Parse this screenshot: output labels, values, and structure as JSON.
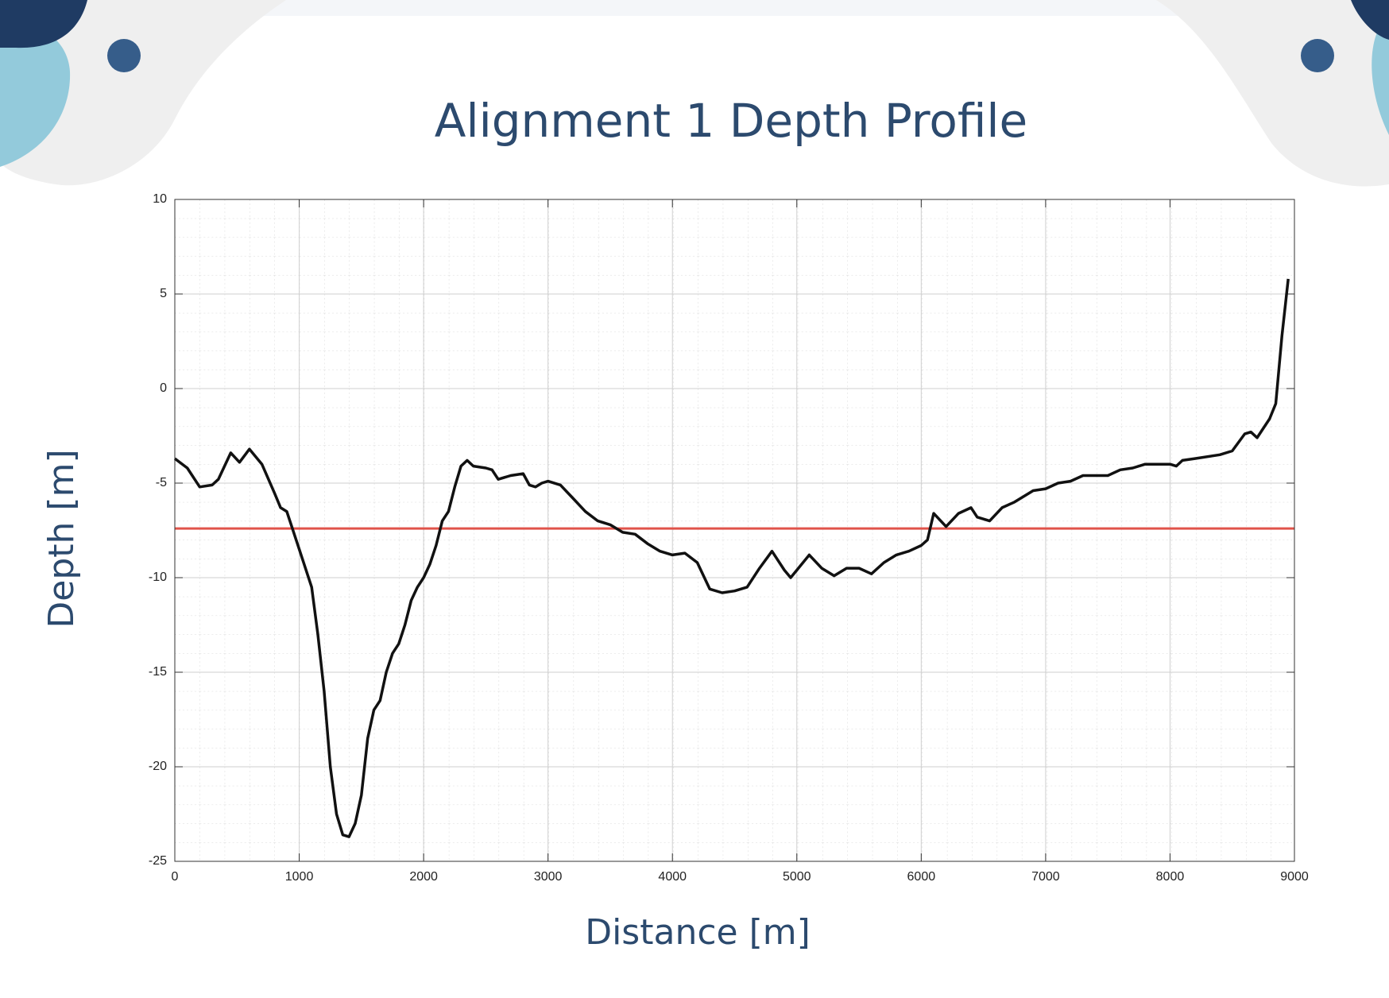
{
  "chart_data": {
    "type": "line",
    "title": "Alignment 1 Depth Profile",
    "x_label": "Distance [m]",
    "y_label": "Depth [m]",
    "x": [
      0,
      100,
      200,
      300,
      350,
      450,
      520,
      600,
      700,
      800,
      850,
      900,
      1000,
      1100,
      1150,
      1200,
      1250,
      1300,
      1350,
      1400,
      1450,
      1500,
      1550,
      1600,
      1650,
      1700,
      1750,
      1800,
      1850,
      1900,
      1950,
      2000,
      2050,
      2100,
      2150,
      2200,
      2250,
      2300,
      2350,
      2400,
      2500,
      2550,
      2600,
      2700,
      2800,
      2850,
      2900,
      2950,
      3000,
      3100,
      3200,
      3300,
      3400,
      3500,
      3600,
      3700,
      3800,
      3900,
      4000,
      4100,
      4200,
      4300,
      4400,
      4500,
      4600,
      4700,
      4800,
      4900,
      4950,
      5000,
      5100,
      5200,
      5300,
      5400,
      5500,
      5600,
      5700,
      5800,
      5900,
      6000,
      6050,
      6100,
      6200,
      6300,
      6400,
      6450,
      6550,
      6650,
      6750,
      6900,
      7000,
      7100,
      7200,
      7300,
      7500,
      7600,
      7700,
      7800,
      8000,
      8050,
      8100,
      8200,
      8400,
      8500,
      8600,
      8650,
      8700,
      8800,
      8850,
      8900,
      8950
    ],
    "values": [
      -3.7,
      -4.2,
      -5.2,
      -5.1,
      -4.8,
      -3.4,
      -3.9,
      -3.2,
      -4.0,
      -5.5,
      -6.3,
      -6.5,
      -8.5,
      -10.5,
      -13,
      -16,
      -20,
      -22.5,
      -23.6,
      -23.7,
      -23.0,
      -21.5,
      -18.5,
      -17,
      -16.5,
      -15,
      -14,
      -13.5,
      -12.5,
      -11.2,
      -10.5,
      -10,
      -9.3,
      -8.3,
      -7,
      -6.5,
      -5.2,
      -4.1,
      -3.8,
      -4.1,
      -4.2,
      -4.3,
      -4.8,
      -4.6,
      -4.5,
      -5.1,
      -5.2,
      -5.0,
      -4.9,
      -5.1,
      -5.8,
      -6.5,
      -7.0,
      -7.2,
      -7.6,
      -7.7,
      -8.2,
      -8.6,
      -8.8,
      -8.7,
      -9.2,
      -10.6,
      -10.8,
      -10.7,
      -10.5,
      -9.5,
      -8.6,
      -9.6,
      -10.0,
      -9.6,
      -8.8,
      -9.5,
      -9.9,
      -9.5,
      -9.5,
      -9.8,
      -9.2,
      -8.8,
      -8.6,
      -8.3,
      -8.0,
      -6.6,
      -7.3,
      -6.6,
      -6.3,
      -6.8,
      -7.0,
      -6.3,
      -6.0,
      -5.4,
      -5.3,
      -5.0,
      -4.9,
      -4.6,
      -4.6,
      -4.3,
      -4.2,
      -4.0,
      -4.0,
      -4.1,
      -3.8,
      -3.7,
      -3.5,
      -3.3,
      -2.4,
      -2.3,
      -2.6,
      -1.6,
      -0.8,
      2.8,
      5.8
    ],
    "color": "#111111",
    "reference_line": {
      "value": -7.4,
      "color": "#e0534a"
    },
    "xlim": [
      0,
      9000
    ],
    "xticks": [
      0,
      1000,
      2000,
      3000,
      4000,
      5000,
      6000,
      7000,
      8000,
      9000
    ],
    "ylim": [
      -25,
      10
    ],
    "yticks": [
      -25,
      -20,
      -15,
      -10,
      -5,
      0,
      5,
      10
    ],
    "grid": true
  }
}
